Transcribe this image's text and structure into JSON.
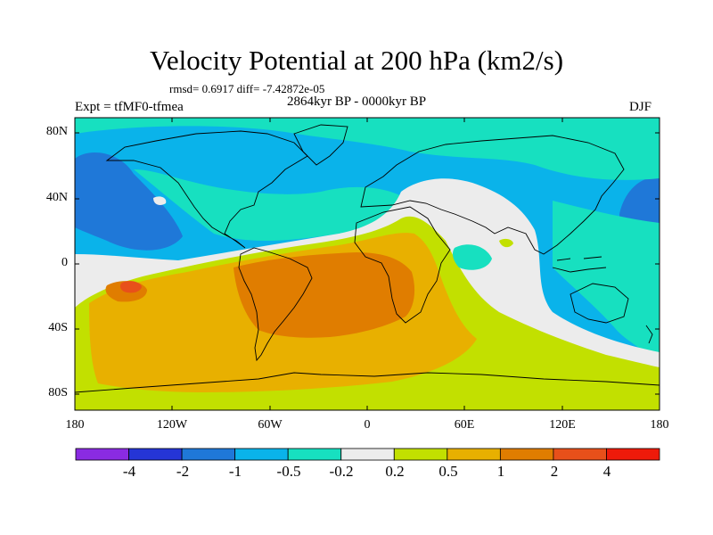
{
  "title": "Velocity Potential at 200 hPa (km2/s)",
  "stats": "rmsd= 0.6917 diff= -7.42872e-05",
  "period": "2864kyr BP - 0000kyr BP",
  "experiment": "Expt = tfMF0-tfmea",
  "season": "DJF",
  "lat_labels": [
    "80N",
    "40N",
    "0",
    "40S",
    "80S"
  ],
  "lon_labels": [
    "180",
    "120W",
    "60W",
    "0",
    "60E",
    "120E",
    "180"
  ],
  "colorbar": {
    "labels": [
      "-4",
      "-2",
      "-1",
      "-0.5",
      "-0.2",
      "0.2",
      "0.5",
      "1",
      "2",
      "4"
    ],
    "colors": [
      "#8a2be2",
      "#2535d6",
      "#1f78d8",
      "#0ab3ea",
      "#17e0c0",
      "#ececec",
      "#c2e000",
      "#e8b000",
      "#e07d00",
      "#e8501a",
      "#ee1a0a"
    ]
  },
  "map_colors": {
    "m1": "#1f78d8",
    "m05": "#0ab3ea",
    "m02": "#17e0c0",
    "zero": "#ececec",
    "p02": "#c2e000",
    "p05": "#e8b000",
    "p1": "#e07d00",
    "p2": "#e8501a"
  }
}
